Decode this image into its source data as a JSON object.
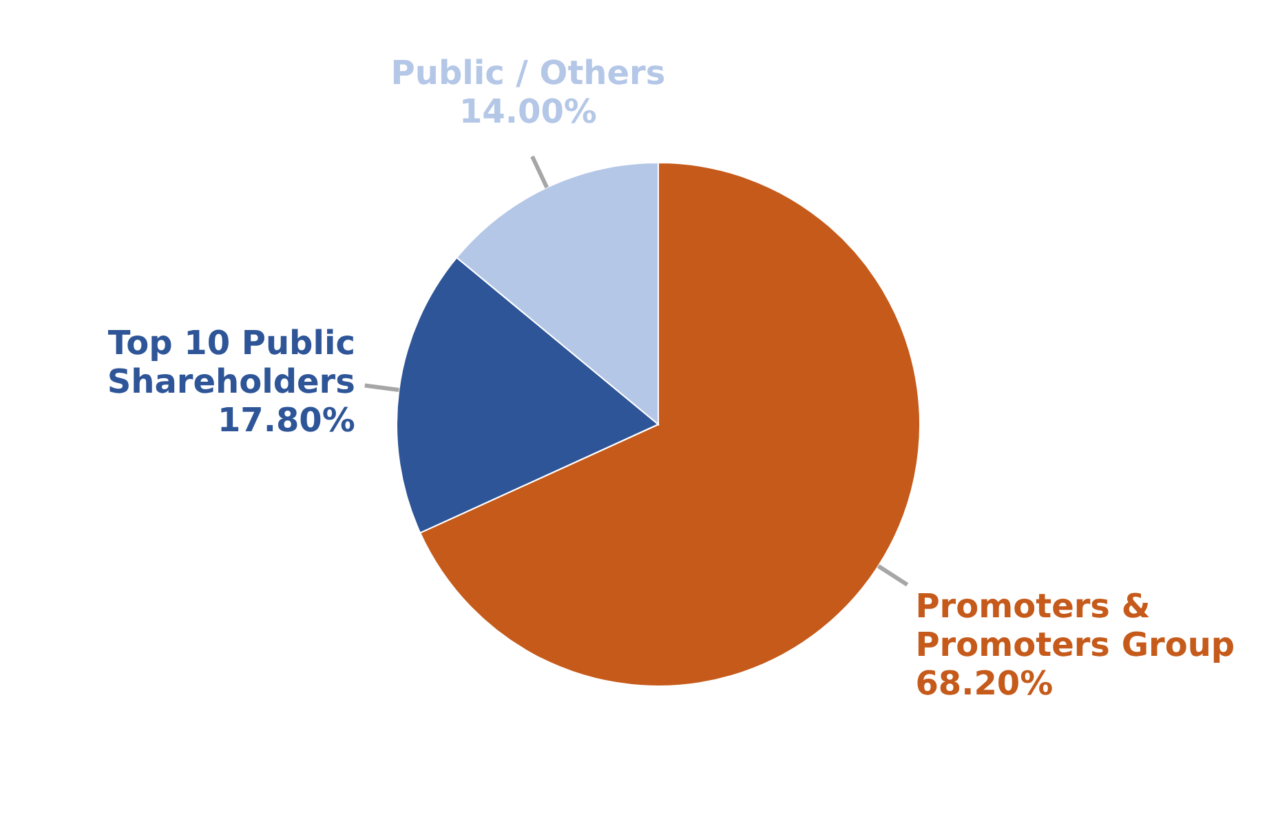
{
  "chart_data": {
    "type": "pie",
    "categories": [
      "Promoters & Promoters Group",
      "Top 10 Public Shareholders",
      "Public / Others"
    ],
    "values": [
      68.2,
      17.8,
      14.0
    ],
    "colors": [
      "#c55a1a",
      "#2e5597",
      "#b4c7e7"
    ],
    "value_labels": [
      "68.20%",
      "17.80%",
      "14.00%"
    ]
  }
}
